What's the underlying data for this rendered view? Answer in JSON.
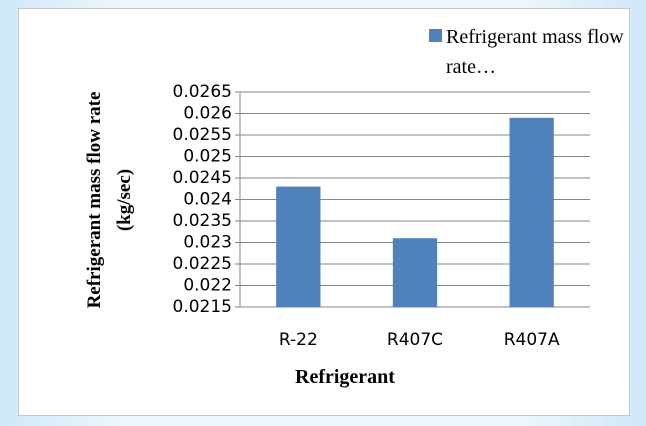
{
  "chart_data": {
    "type": "bar",
    "x_label": "Refrigerant",
    "y_label": "Refrigerant mass flow rate (kg/sec)",
    "categories": [
      "R-22",
      "R407C",
      "R407A"
    ],
    "series": [
      {
        "name": "Refrigerant mass flow rate…",
        "color": "#4f81bd",
        "values": [
          0.0243,
          0.0231,
          0.0259
        ]
      }
    ],
    "ylim": [
      0.0215,
      0.0265
    ],
    "yticks": [
      0.0215,
      0.022,
      0.0225,
      0.023,
      0.0235,
      0.024,
      0.0245,
      0.025,
      0.0255,
      0.026,
      0.0265
    ],
    "grid": true,
    "legend": "top-right"
  }
}
